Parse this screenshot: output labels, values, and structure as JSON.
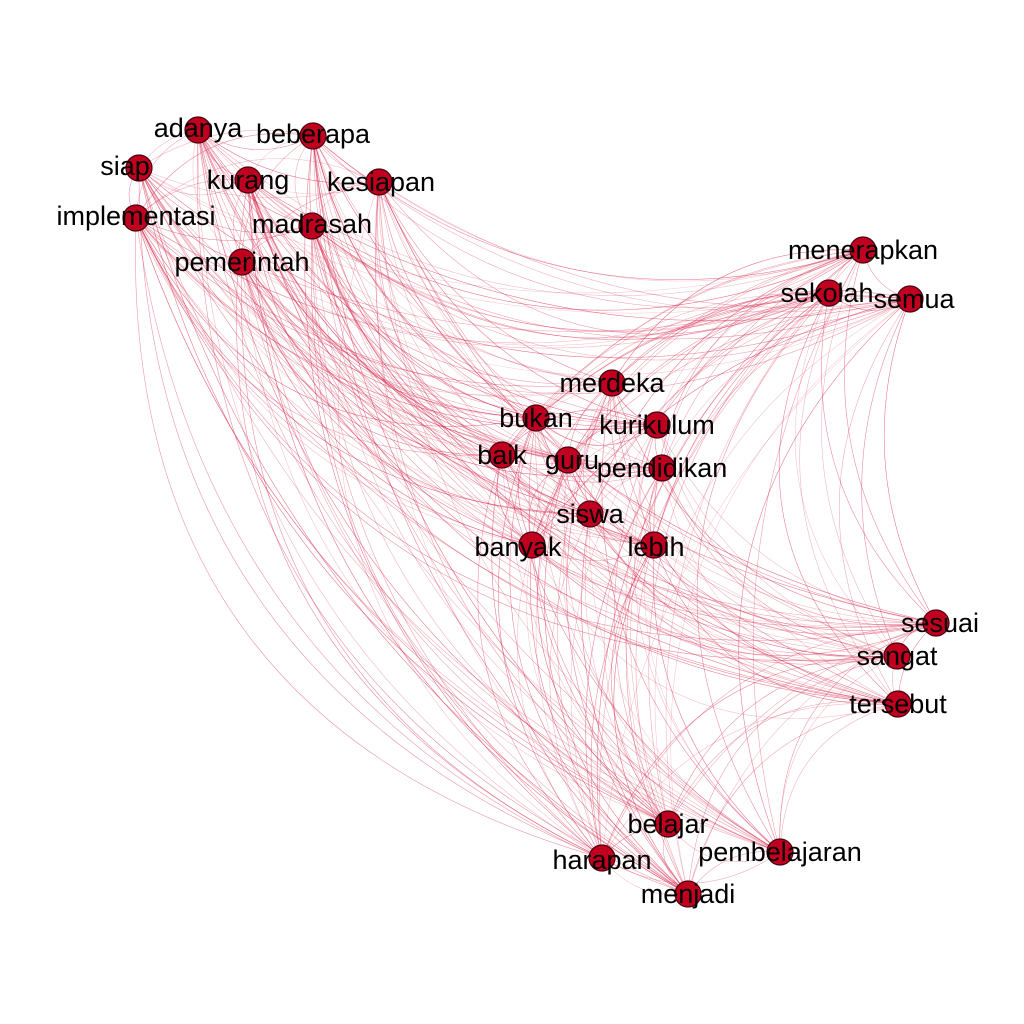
{
  "colors": {
    "node_fill": "#c0001e",
    "edge_stroke": "#d6294e",
    "label_text": "#000000",
    "background": "#ffffff"
  },
  "nodes": [
    {
      "id": "adanya",
      "label": "adanya"
    },
    {
      "id": "beberapa",
      "label": "beberapa"
    },
    {
      "id": "siap",
      "label": "siap"
    },
    {
      "id": "kurang",
      "label": "kurang"
    },
    {
      "id": "kesiapan",
      "label": "kesiapan"
    },
    {
      "id": "implementasi",
      "label": "implementasi"
    },
    {
      "id": "madrasah",
      "label": "madrasah"
    },
    {
      "id": "pemerintah",
      "label": "pemerintah"
    },
    {
      "id": "menerapkan",
      "label": "menerapkan"
    },
    {
      "id": "sekolah",
      "label": "sekolah"
    },
    {
      "id": "semua",
      "label": "semua"
    },
    {
      "id": "merdeka",
      "label": "merdeka"
    },
    {
      "id": "bukan",
      "label": "bukan"
    },
    {
      "id": "kurikulum",
      "label": "kurikulum"
    },
    {
      "id": "baik",
      "label": "baik"
    },
    {
      "id": "guru",
      "label": "guru"
    },
    {
      "id": "pendidikan",
      "label": "pendidikan"
    },
    {
      "id": "siswa",
      "label": "siswa"
    },
    {
      "id": "banyak",
      "label": "banyak"
    },
    {
      "id": "lebih",
      "label": "lebih"
    },
    {
      "id": "sesuai",
      "label": "sesuai"
    },
    {
      "id": "sangat",
      "label": "sangat"
    },
    {
      "id": "tersebut",
      "label": "tersebut"
    },
    {
      "id": "belajar",
      "label": "belajar"
    },
    {
      "id": "harapan",
      "label": "harapan"
    },
    {
      "id": "pembelajaran",
      "label": "pembelajaran"
    },
    {
      "id": "menjadi",
      "label": "menjadi"
    }
  ]
}
